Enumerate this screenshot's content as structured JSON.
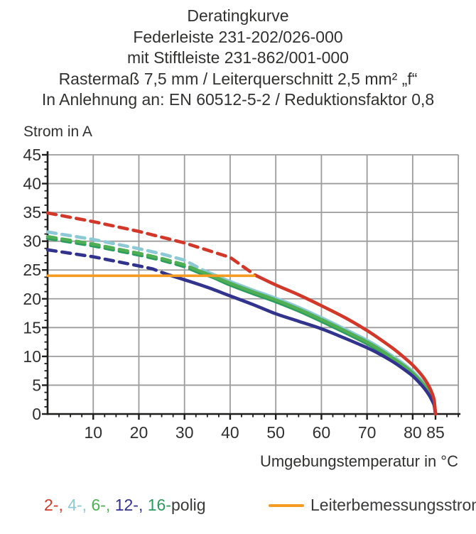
{
  "title": {
    "lines": [
      "Deratingkurve",
      "Federleiste 231-202/026-000",
      "mit Stiftleiste 231-862/001-000",
      "Rastermaß 7,5 mm / Leiterquerschnitt 2,5 mm² „f“",
      "In Anlehnung an: EN 60512-5-2 / Reduktionsfaktor 0,8"
    ]
  },
  "chart_data": {
    "type": "line",
    "title": "Deratingkurve",
    "xlabel": "Umgebungstemperatur in °C",
    "ylabel": "Strom in A",
    "xlim": [
      0,
      90
    ],
    "ylim": [
      0,
      45
    ],
    "x_ticks": [
      10,
      20,
      30,
      40,
      50,
      60,
      70,
      80,
      85
    ],
    "y_ticks": [
      0,
      5,
      10,
      15,
      20,
      25,
      30,
      35,
      40,
      45
    ],
    "x_gridlines": [
      10,
      20,
      30,
      40,
      50,
      60,
      70,
      80,
      90
    ],
    "y_gridlines": [
      5,
      10,
      15,
      20,
      25,
      30,
      35,
      40,
      45
    ],
    "x_minor_step": 2.5,
    "y_minor_step": 1.25,
    "grid_color": "#9c9c9c",
    "axis_color": "#1d1d1b",
    "series": [
      {
        "name": "2-polig",
        "color": "#d2382a",
        "dashed": [
          [
            0,
            34.9
          ],
          [
            10,
            33.4
          ],
          [
            20,
            31.7
          ],
          [
            30,
            29.7
          ],
          [
            40,
            27.2
          ],
          [
            45.5,
            24.1
          ]
        ],
        "solid": [
          [
            45.5,
            24.1
          ],
          [
            50,
            22.4
          ],
          [
            55,
            20.7
          ],
          [
            60,
            18.8
          ],
          [
            65,
            16.8
          ],
          [
            70,
            14.5
          ],
          [
            73,
            12.9
          ],
          [
            76,
            11.2
          ],
          [
            78,
            9.9
          ],
          [
            80,
            8.5
          ],
          [
            81.5,
            7.2
          ],
          [
            82.5,
            6.2
          ],
          [
            83.5,
            4.9
          ],
          [
            84.2,
            3.7
          ],
          [
            84.7,
            2.4
          ],
          [
            85,
            0
          ]
        ]
      },
      {
        "name": "4-polig",
        "color": "#8cc9d4",
        "dashed": [
          [
            0,
            31.6
          ],
          [
            10,
            30.3
          ],
          [
            20,
            28.7
          ],
          [
            25,
            27.8
          ],
          [
            30,
            26.7
          ],
          [
            34,
            25.0
          ]
        ],
        "solid": [
          [
            34,
            25.0
          ],
          [
            37,
            24.0
          ],
          [
            40,
            23.0
          ],
          [
            45,
            21.5
          ],
          [
            50,
            20.1
          ],
          [
            55,
            18.5
          ],
          [
            60,
            16.7
          ],
          [
            65,
            14.8
          ],
          [
            70,
            12.8
          ],
          [
            73,
            11.4
          ],
          [
            76,
            9.8
          ],
          [
            78,
            8.7
          ],
          [
            80,
            7.4
          ],
          [
            81.5,
            6.2
          ],
          [
            82.5,
            5.3
          ],
          [
            83.5,
            4.1
          ],
          [
            84.2,
            3.0
          ],
          [
            84.7,
            1.9
          ],
          [
            85,
            0
          ]
        ]
      },
      {
        "name": "6-polig",
        "color": "#50ae54",
        "dashed": [
          [
            0,
            30.8
          ],
          [
            10,
            29.5
          ],
          [
            20,
            27.9
          ],
          [
            25,
            27.0
          ],
          [
            30,
            25.9
          ],
          [
            33,
            24.9
          ]
        ],
        "solid": [
          [
            33,
            24.9
          ],
          [
            36,
            24.0
          ],
          [
            40,
            22.7
          ],
          [
            45,
            21.2
          ],
          [
            50,
            19.8
          ],
          [
            55,
            18.2
          ],
          [
            60,
            16.4
          ],
          [
            65,
            14.5
          ],
          [
            70,
            12.5
          ],
          [
            73,
            11.1
          ],
          [
            76,
            9.5
          ],
          [
            78,
            8.4
          ],
          [
            80,
            7.1
          ],
          [
            81.5,
            5.9
          ],
          [
            82.5,
            5.0
          ],
          [
            83.5,
            3.9
          ],
          [
            84.2,
            2.8
          ],
          [
            84.7,
            1.7
          ],
          [
            85,
            0
          ]
        ]
      },
      {
        "name": "12-polig",
        "color": "#31338c",
        "dashed": [
          [
            0,
            28.5
          ],
          [
            10,
            27.3
          ],
          [
            20,
            25.7
          ],
          [
            23,
            25.2
          ],
          [
            26,
            24.3
          ]
        ],
        "solid": [
          [
            26,
            24.3
          ],
          [
            30,
            23.3
          ],
          [
            35,
            22.0
          ],
          [
            40,
            20.5
          ],
          [
            45,
            19.0
          ],
          [
            50,
            17.4
          ],
          [
            55,
            16.1
          ],
          [
            60,
            14.8
          ],
          [
            65,
            13.2
          ],
          [
            70,
            11.5
          ],
          [
            73,
            10.3
          ],
          [
            76,
            8.9
          ],
          [
            78,
            7.8
          ],
          [
            80,
            6.6
          ],
          [
            81.5,
            5.4
          ],
          [
            82.5,
            4.5
          ],
          [
            83.5,
            3.4
          ],
          [
            84.2,
            2.4
          ],
          [
            84.7,
            1.5
          ],
          [
            85,
            0
          ]
        ]
      },
      {
        "name": "16-polig",
        "color": "#2b9b5f",
        "dashed": [
          [
            0,
            30.5
          ],
          [
            10,
            29.2
          ],
          [
            20,
            27.6
          ],
          [
            25,
            26.7
          ],
          [
            30,
            25.6
          ],
          [
            33,
            24.6
          ]
        ],
        "solid": [
          [
            33,
            24.6
          ],
          [
            36,
            23.8
          ],
          [
            40,
            22.4
          ],
          [
            45,
            20.9
          ],
          [
            50,
            19.5
          ],
          [
            55,
            17.9
          ],
          [
            60,
            16.1
          ],
          [
            65,
            14.2
          ],
          [
            70,
            12.2
          ],
          [
            73,
            10.8
          ],
          [
            76,
            9.3
          ],
          [
            78,
            8.1
          ],
          [
            80,
            6.9
          ],
          [
            81.5,
            5.7
          ],
          [
            82.5,
            4.8
          ],
          [
            83.5,
            3.7
          ],
          [
            84.2,
            2.6
          ],
          [
            84.7,
            1.6
          ],
          [
            85,
            0
          ]
        ]
      }
    ],
    "rated_line": {
      "label": "Leiterbemessungsstrom",
      "color": "#f59b22",
      "current": 24,
      "t_start": 0,
      "t_end": 45.3
    },
    "legend_position": "bottom"
  },
  "axis_labels": {
    "y": "Strom in A",
    "x": "Umgebungstemperatur in °C"
  },
  "legend": {
    "pole_items": [
      {
        "label": "2-",
        "color": "#d2382a"
      },
      {
        "label": "4-",
        "color": "#8cc9d4"
      },
      {
        "label": "6-",
        "color": "#50ae54"
      },
      {
        "label": "12-",
        "color": "#31338c"
      },
      {
        "label": "16-",
        "color": "#2b9b5f"
      }
    ],
    "separator": ", ",
    "suffix": "polig",
    "rated_label": "Leiterbemessungsstrom"
  }
}
